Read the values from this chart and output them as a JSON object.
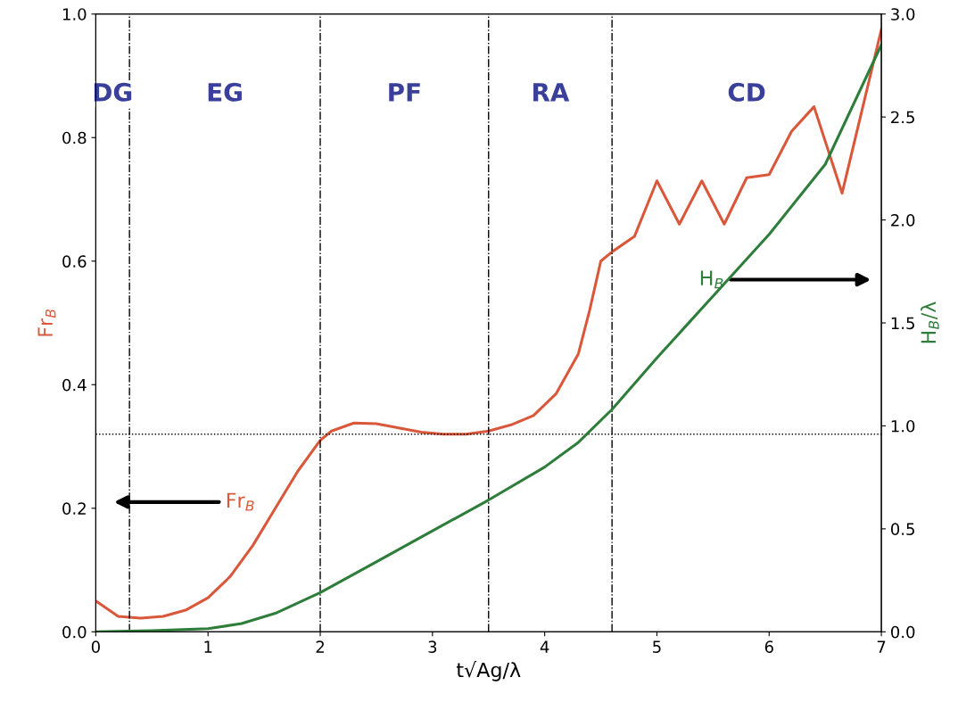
{
  "chart_data": {
    "type": "line",
    "xlabel": "t√Ag/λ",
    "ylabel": "Fr$_{B}$",
    "y2label": "H$_{B}$/λ",
    "xlim": [
      0,
      7
    ],
    "xticks": [
      0,
      1,
      2,
      3,
      4,
      5,
      6,
      7
    ],
    "ylim": [
      0,
      1.0
    ],
    "yticks": [
      {
        "value": 0,
        "label": "0.0"
      },
      0.2,
      0.4,
      0.6,
      0.8,
      {
        "value": 1.0,
        "label": "1.0"
      }
    ],
    "y2lim": [
      0,
      3.0
    ],
    "y2ticks": [
      {
        "value": 0,
        "label": "0.0"
      },
      0.5,
      {
        "value": 1.0,
        "label": "1.0"
      },
      1.5,
      {
        "value": 2.0,
        "label": "2.0"
      },
      2.5,
      {
        "value": 3.0,
        "label": "3.0"
      }
    ],
    "grid": false,
    "marker": "none",
    "line_style": "solid",
    "series": [
      {
        "name": "Fr$_{B}$",
        "color": "#d9573a",
        "x": [
          0,
          0.2,
          0.4,
          0.6,
          0.8,
          1.0,
          1.2,
          1.4,
          1.6,
          1.8,
          2.0,
          2.1,
          2.3,
          2.5,
          2.7,
          2.9,
          3.1,
          3.3,
          3.5,
          3.7,
          3.9,
          4.1,
          4.3,
          4.4,
          4.5,
          4.6,
          4.8,
          5.0,
          5.2,
          5.4,
          5.6,
          5.8,
          6.0,
          6.2,
          6.4,
          6.65,
          7.0
        ],
        "values": [
          0.05,
          0.025,
          0.022,
          0.025,
          0.035,
          0.055,
          0.09,
          0.14,
          0.2,
          0.26,
          0.31,
          0.325,
          0.338,
          0.337,
          0.33,
          0.323,
          0.32,
          0.32,
          0.325,
          0.335,
          0.35,
          0.385,
          0.45,
          0.52,
          0.6,
          0.615,
          0.64,
          0.73,
          0.66,
          0.73,
          0.66,
          0.735,
          0.74,
          0.81,
          0.85,
          0.71,
          0.975
        ]
      },
      {
        "name": "H$_{B}$",
        "color": "#2e7d3a",
        "axis": "y2",
        "x": [
          0,
          0.5,
          1.0,
          1.3,
          1.6,
          2.0,
          2.5,
          3.0,
          3.5,
          4.0,
          4.3,
          4.6,
          5.0,
          5.5,
          6.0,
          6.5,
          7.0
        ],
        "values": [
          0,
          0.005,
          0.015,
          0.04,
          0.09,
          0.19,
          0.34,
          0.49,
          0.64,
          0.8,
          0.92,
          1.08,
          1.33,
          1.63,
          1.93,
          2.27,
          2.85
        ]
      }
    ],
    "ref_lines": [
      {
        "axis": "x",
        "value": 0.3,
        "line_style": "dashdot"
      },
      {
        "axis": "x",
        "value": 2.0,
        "line_style": "dashdot"
      },
      {
        "axis": "x",
        "value": 3.5,
        "line_style": "dashdot"
      },
      {
        "axis": "x",
        "value": 4.6,
        "line_style": "dashdot"
      },
      {
        "axis": "y",
        "value": 0.32,
        "line_style": "dotted"
      }
    ],
    "annotations": [
      "DG",
      "EG",
      "PF",
      "RA",
      "CD"
    ]
  }
}
